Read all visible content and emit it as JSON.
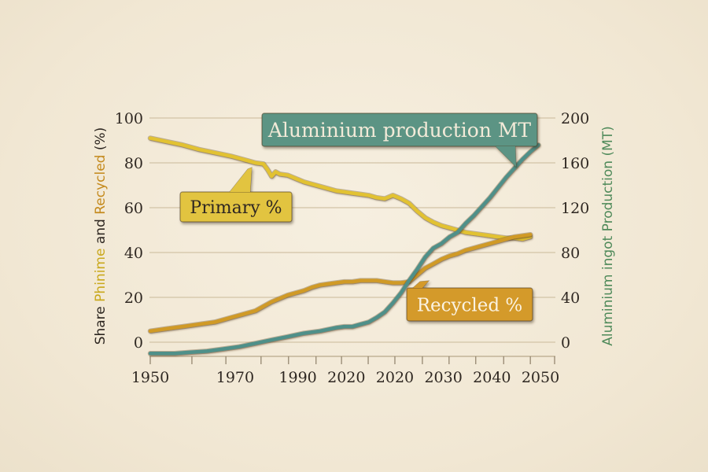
{
  "chart_data": {
    "type": "line",
    "title": "",
    "xlabel": "",
    "x_tick_labels": [
      {
        "label": "1950",
        "pos": 0
      },
      {
        "label": "1970",
        "pos": 21
      },
      {
        "label": "1990",
        "pos": 36.5
      },
      {
        "label": "2020",
        "pos": 48.5
      },
      {
        "label": "2020",
        "pos": 60.5
      },
      {
        "label": "2030",
        "pos": 72.5
      },
      {
        "label": "2040",
        "pos": 84.5
      },
      {
        "label": "2050",
        "pos": 96.5
      }
    ],
    "x_range": [
      0,
      100
    ],
    "y_left": {
      "label_parts": [
        {
          "text": "Share ",
          "color": "#2e2721"
        },
        {
          "text": "Phinime",
          "color": "#c9a81c"
        },
        {
          "text": " and ",
          "color": "#2e2721"
        },
        {
          "text": "Recycled",
          "color": "#c48a1d"
        },
        {
          "text": " (%)",
          "color": "#2e2721"
        }
      ],
      "ticks": [
        "0",
        "20",
        "40",
        "60",
        "80",
        "100"
      ],
      "range": [
        0,
        100
      ]
    },
    "y_right": {
      "label": "Aluminium ingot Production (MT)",
      "label_color": "#4f8a5a",
      "ticks": [
        "0",
        "40",
        "80",
        "120",
        "160",
        "200"
      ],
      "range": [
        0,
        200
      ]
    },
    "grid": true,
    "series": [
      {
        "name": "Primary %",
        "axis": "left",
        "color": "#e2c233",
        "points": [
          [
            0,
            91
          ],
          [
            4,
            89.5
          ],
          [
            8,
            88
          ],
          [
            12,
            86
          ],
          [
            16,
            84.5
          ],
          [
            20,
            83
          ],
          [
            24,
            81
          ],
          [
            26,
            80
          ],
          [
            28,
            79.5
          ],
          [
            29,
            77
          ],
          [
            30,
            74
          ],
          [
            31,
            76
          ],
          [
            32,
            75
          ],
          [
            34,
            74.5
          ],
          [
            36,
            73
          ],
          [
            38,
            71.5
          ],
          [
            40,
            70.5
          ],
          [
            42,
            69.5
          ],
          [
            44,
            68.5
          ],
          [
            46,
            67.5
          ],
          [
            48,
            67
          ],
          [
            50,
            66.5
          ],
          [
            52,
            66
          ],
          [
            54,
            65.5
          ],
          [
            56,
            64.5
          ],
          [
            58,
            64
          ],
          [
            60,
            65.5
          ],
          [
            62,
            64
          ],
          [
            64,
            62
          ],
          [
            66,
            58.5
          ],
          [
            68,
            55.5
          ],
          [
            70,
            53.5
          ],
          [
            72,
            52
          ],
          [
            74,
            51
          ],
          [
            76,
            50
          ],
          [
            78,
            49
          ],
          [
            80,
            48.5
          ],
          [
            82,
            48
          ],
          [
            84,
            47.5
          ],
          [
            86,
            47
          ],
          [
            88,
            46.5
          ],
          [
            90,
            46.5
          ],
          [
            92,
            46
          ],
          [
            94,
            47
          ]
        ]
      },
      {
        "name": "Recycled %",
        "axis": "left",
        "color": "#d09a28",
        "points": [
          [
            0,
            5
          ],
          [
            4,
            6
          ],
          [
            8,
            7
          ],
          [
            12,
            8
          ],
          [
            16,
            9
          ],
          [
            20,
            11
          ],
          [
            24,
            13
          ],
          [
            26,
            14
          ],
          [
            28,
            16
          ],
          [
            30,
            18
          ],
          [
            32,
            19.5
          ],
          [
            34,
            21
          ],
          [
            36,
            22
          ],
          [
            38,
            23
          ],
          [
            40,
            24.5
          ],
          [
            42,
            25.5
          ],
          [
            44,
            26
          ],
          [
            46,
            26.5
          ],
          [
            48,
            27
          ],
          [
            50,
            27
          ],
          [
            52,
            27.5
          ],
          [
            54,
            27.5
          ],
          [
            56,
            27.5
          ],
          [
            58,
            27
          ],
          [
            60,
            26.5
          ],
          [
            62,
            26.5
          ],
          [
            64,
            27
          ],
          [
            66,
            30
          ],
          [
            68,
            33
          ],
          [
            70,
            35
          ],
          [
            72,
            37
          ],
          [
            74,
            38.5
          ],
          [
            76,
            39.5
          ],
          [
            78,
            41
          ],
          [
            80,
            42
          ],
          [
            82,
            43
          ],
          [
            84,
            44
          ],
          [
            86,
            45
          ],
          [
            88,
            46
          ],
          [
            90,
            47
          ],
          [
            94,
            48
          ]
        ]
      },
      {
        "name": "Aluminium production MT",
        "axis": "right",
        "color": "#4f9089",
        "points": [
          [
            0,
            -10
          ],
          [
            6,
            -10
          ],
          [
            10,
            -9
          ],
          [
            14,
            -8
          ],
          [
            18,
            -6
          ],
          [
            22,
            -4
          ],
          [
            26,
            -1
          ],
          [
            30,
            2
          ],
          [
            34,
            5
          ],
          [
            38,
            8
          ],
          [
            42,
            10
          ],
          [
            46,
            13
          ],
          [
            48,
            14
          ],
          [
            50,
            14
          ],
          [
            52,
            16
          ],
          [
            54,
            18
          ],
          [
            56,
            22
          ],
          [
            58,
            27
          ],
          [
            60,
            35
          ],
          [
            62,
            44
          ],
          [
            64,
            55
          ],
          [
            66,
            65
          ],
          [
            68,
            76
          ],
          [
            70,
            84
          ],
          [
            72,
            88
          ],
          [
            74,
            94
          ],
          [
            76,
            98
          ],
          [
            78,
            106
          ],
          [
            80,
            113
          ],
          [
            82,
            121
          ],
          [
            84,
            129
          ],
          [
            86,
            138
          ],
          [
            88,
            147
          ],
          [
            90,
            155
          ],
          [
            92,
            163
          ],
          [
            94,
            170
          ],
          [
            96,
            176
          ]
        ]
      }
    ],
    "annotations": [
      {
        "text": "Aluminium production MT",
        "series": "Aluminium production MT",
        "fill": "#5b9484",
        "text_color": "#f3ead8"
      },
      {
        "text": "Primary %",
        "series": "Primary %",
        "fill": "#e2c440",
        "text_color": "#2e2721"
      },
      {
        "text": "Recycled %",
        "series": "Recycled %",
        "fill": "#d49a2c",
        "text_color": "#fbf3e2"
      }
    ]
  }
}
